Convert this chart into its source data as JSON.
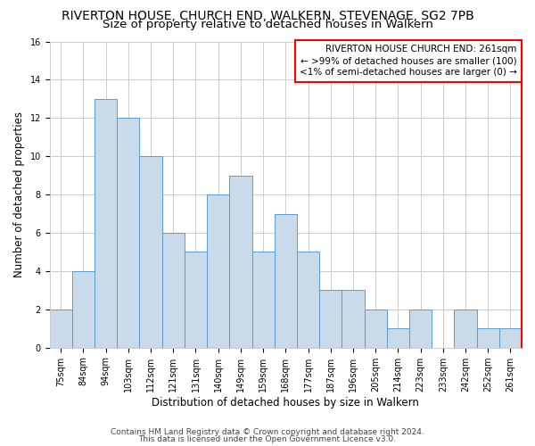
{
  "title": "RIVERTON HOUSE, CHURCH END, WALKERN, STEVENAGE, SG2 7PB",
  "subtitle": "Size of property relative to detached houses in Walkern",
  "xlabel": "Distribution of detached houses by size in Walkern",
  "ylabel": "Number of detached properties",
  "categories": [
    "75sqm",
    "84sqm",
    "94sqm",
    "103sqm",
    "112sqm",
    "121sqm",
    "131sqm",
    "140sqm",
    "149sqm",
    "159sqm",
    "168sqm",
    "177sqm",
    "187sqm",
    "196sqm",
    "205sqm",
    "214sqm",
    "223sqm",
    "233sqm",
    "242sqm",
    "252sqm",
    "261sqm"
  ],
  "values": [
    2,
    4,
    13,
    12,
    10,
    6,
    5,
    8,
    9,
    5,
    7,
    5,
    3,
    3,
    2,
    1,
    2,
    0,
    2,
    1,
    1
  ],
  "bar_color": "#c9daea",
  "bar_edge_color": "#5b9bd5",
  "highlight_index": 20,
  "highlight_edge_color": "#ff0000",
  "ylim": [
    0,
    16
  ],
  "yticks": [
    0,
    2,
    4,
    6,
    8,
    10,
    12,
    14,
    16
  ],
  "grid_color": "#cccccc",
  "background_color": "#ffffff",
  "annotation_text": "RIVERTON HOUSE CHURCH END: 261sqm\n← >99% of detached houses are smaller (100)\n<1% of semi-detached houses are larger (0) →",
  "annotation_box_edge_color": "#ff0000",
  "footer_line1": "Contains HM Land Registry data © Crown copyright and database right 2024.",
  "footer_line2": "This data is licensed under the Open Government Licence v3.0.",
  "title_fontsize": 10,
  "subtitle_fontsize": 9.5,
  "xlabel_fontsize": 8.5,
  "ylabel_fontsize": 8.5,
  "tick_fontsize": 7,
  "annotation_fontsize": 7.5,
  "footer_fontsize": 6.5
}
